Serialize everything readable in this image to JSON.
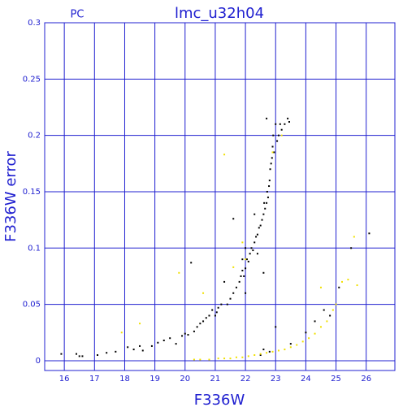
{
  "chart_data": {
    "type": "scatter",
    "title": "lmc_u32h04",
    "subtitle": "PC",
    "x_label": "F336W",
    "y_label": "F336W error",
    "xlim": [
      15.35,
      26.95
    ],
    "ylim": [
      -0.0087,
      0.3
    ],
    "xticks": [
      16,
      17,
      18,
      19,
      20,
      21,
      22,
      23,
      24,
      25,
      26
    ],
    "yticks": [
      0,
      0.05,
      0.1,
      0.15,
      0.2,
      0.25,
      0.3
    ],
    "grid": true,
    "axis_color": "#2020d0",
    "series": [
      {
        "color": "#000000",
        "x": [
          15.9,
          16.4,
          16.5,
          16.6,
          17.1,
          17.4,
          17.7,
          18.1,
          18.3,
          18.5,
          18.6,
          18.9,
          19.1,
          19.3,
          19.5,
          19.7,
          19.9,
          20.0,
          20.1,
          20.2,
          20.3,
          20.4,
          20.5,
          20.6,
          20.7,
          20.8,
          20.9,
          21.0,
          21.05,
          21.1,
          21.2,
          21.3,
          21.4,
          21.5,
          21.6,
          21.6,
          21.7,
          21.8,
          21.85,
          21.9,
          21.95,
          22.0,
          22.05,
          22.1,
          22.15,
          22.2,
          22.25,
          22.3,
          22.35,
          22.4,
          22.45,
          22.5,
          22.55,
          22.6,
          22.62,
          22.65,
          22.7,
          22.72,
          22.75,
          22.78,
          22.8,
          22.82,
          22.85,
          22.88,
          22.9,
          22.92,
          22.95,
          23.0,
          23.05,
          23.1,
          23.15,
          23.2,
          23.3,
          23.4,
          23.45,
          22.7,
          22.3,
          22.0,
          21.9,
          22.4,
          22.6,
          22.0,
          23.0,
          23.5,
          24.0,
          24.3,
          24.6,
          24.8,
          25.1,
          25.5,
          26.1,
          22.6,
          22.5,
          22.8
        ],
        "values": [
          0.006,
          0.006,
          0.004,
          0.004,
          0.005,
          0.007,
          0.008,
          0.012,
          0.01,
          0.013,
          0.009,
          0.013,
          0.016,
          0.018,
          0.02,
          0.015,
          0.022,
          0.024,
          0.023,
          0.087,
          0.026,
          0.03,
          0.033,
          0.035,
          0.038,
          0.04,
          0.045,
          0.04,
          0.043,
          0.047,
          0.05,
          0.07,
          0.05,
          0.055,
          0.06,
          0.126,
          0.065,
          0.07,
          0.075,
          0.08,
          0.075,
          0.082,
          0.09,
          0.088,
          0.095,
          0.1,
          0.098,
          0.105,
          0.11,
          0.112,
          0.118,
          0.12,
          0.125,
          0.13,
          0.14,
          0.135,
          0.14,
          0.15,
          0.145,
          0.155,
          0.16,
          0.17,
          0.175,
          0.18,
          0.19,
          0.2,
          0.185,
          0.21,
          0.195,
          0.2,
          0.21,
          0.205,
          0.21,
          0.215,
          0.212,
          0.215,
          0.13,
          0.1,
          0.09,
          0.095,
          0.078,
          0.06,
          0.03,
          0.015,
          0.025,
          0.035,
          0.045,
          0.04,
          0.065,
          0.1,
          0.113,
          0.01,
          0.005,
          0.008
        ]
      },
      {
        "color": "#f0e000",
        "x": [
          20.3,
          20.5,
          20.8,
          21.1,
          21.3,
          21.5,
          21.7,
          21.9,
          22.1,
          22.3,
          22.5,
          22.7,
          22.9,
          23.1,
          23.3,
          23.5,
          23.7,
          23.9,
          24.1,
          24.3,
          24.5,
          24.7,
          24.9,
          25.0,
          25.2,
          25.4,
          25.6,
          25.7,
          17.9,
          18.5,
          19.8,
          20.6,
          21.3,
          21.9,
          22.0,
          22.9,
          23.2,
          24.5,
          21.6
        ],
        "values": [
          0.001,
          0.001,
          0.001,
          0.002,
          0.002,
          0.002,
          0.003,
          0.003,
          0.004,
          0.005,
          0.006,
          0.007,
          0.008,
          0.009,
          0.01,
          0.012,
          0.014,
          0.017,
          0.02,
          0.024,
          0.03,
          0.035,
          0.045,
          0.05,
          0.07,
          0.072,
          0.11,
          0.067,
          0.025,
          0.033,
          0.078,
          0.06,
          0.183,
          0.105,
          0.09,
          0.185,
          0.2,
          0.065,
          0.083
        ]
      }
    ]
  }
}
